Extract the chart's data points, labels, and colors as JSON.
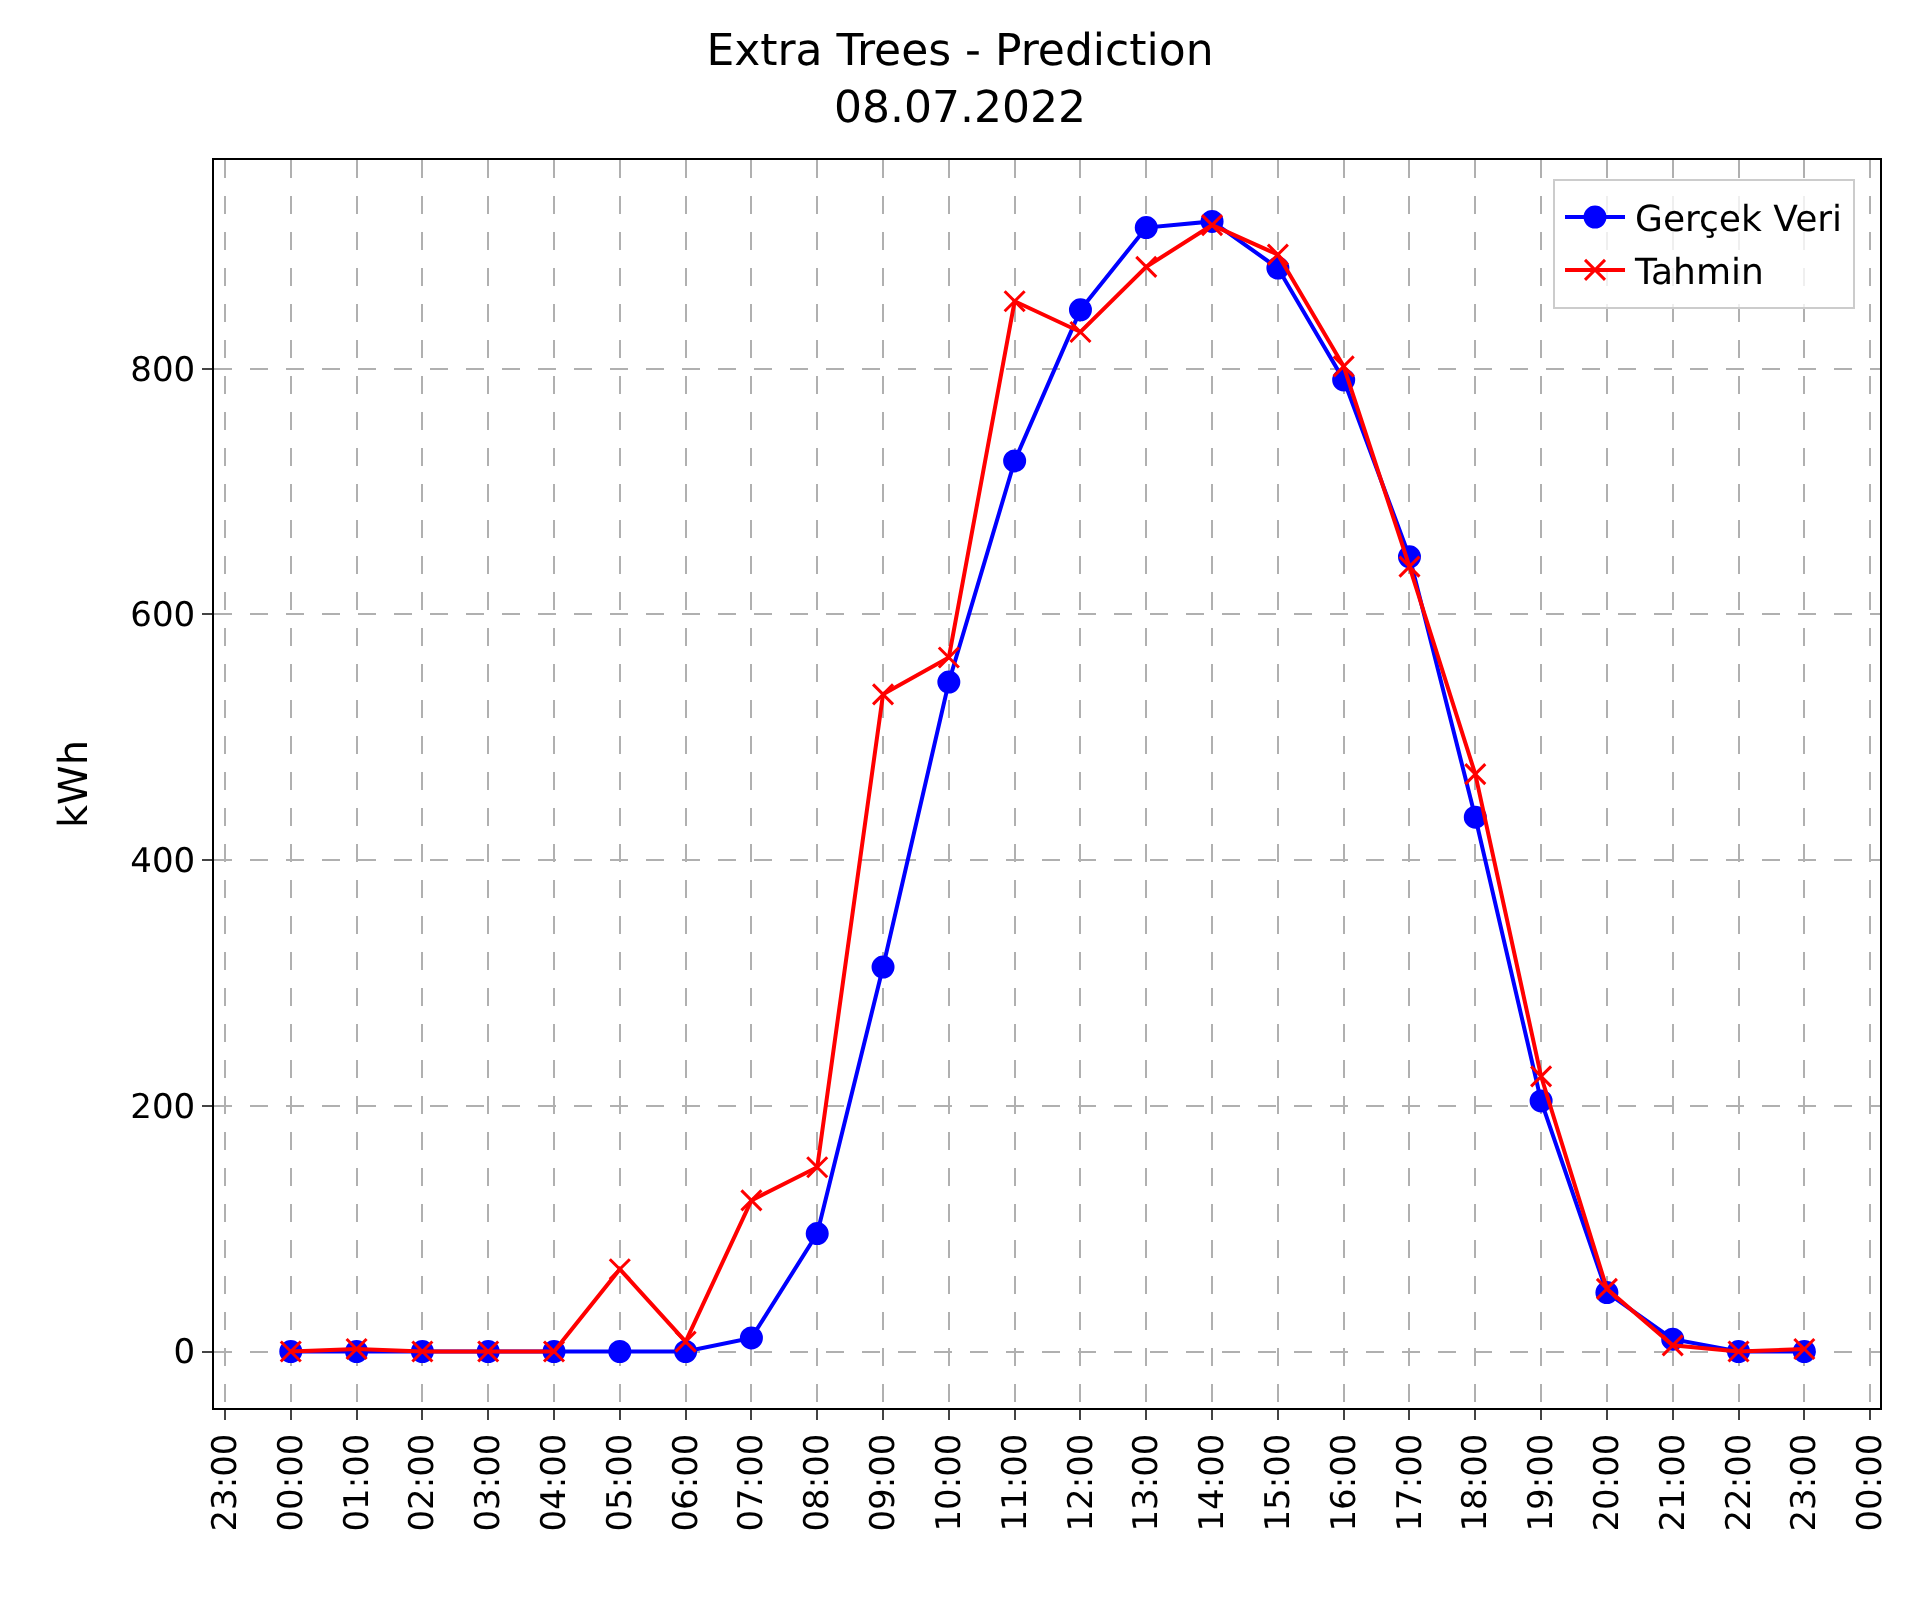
{
  "chart_data": {
    "type": "line",
    "title": "Extra Trees - Prediction",
    "subtitle": "08.07.2022",
    "ylabel": "kWh",
    "x": [
      "2022-07-08T00:00",
      "2022-07-08T01:00",
      "2022-07-08T02:00",
      "2022-07-08T03:00",
      "2022-07-08T04:00",
      "2022-07-08T05:00",
      "2022-07-08T06:00",
      "2022-07-08T07:00",
      "2022-07-08T08:00",
      "2022-07-08T09:00",
      "2022-07-08T10:00",
      "2022-07-08T11:00",
      "2022-07-08T12:00",
      "2022-07-08T13:00",
      "2022-07-08T14:00",
      "2022-07-08T15:00",
      "2022-07-08T16:00",
      "2022-07-08T17:00",
      "2022-07-08T18:00",
      "2022-07-08T19:00",
      "2022-07-08T20:00",
      "2022-07-08T21:00",
      "2022-07-08T22:00",
      "2022-07-08T23:00"
    ],
    "series": [
      {
        "name": "Gerçek Veri",
        "color": "#0000ff",
        "marker": "circle",
        "values": [
          0,
          0,
          0,
          0,
          0,
          0,
          0,
          11,
          96,
          313,
          545,
          725,
          848,
          915,
          920,
          882,
          791,
          647,
          435,
          204,
          48,
          10,
          0,
          0
        ]
      },
      {
        "name": "Tahmin",
        "color": "#ff0000",
        "marker": "cross",
        "values": [
          0,
          2,
          0,
          0,
          0,
          67,
          8,
          123,
          150,
          535,
          565,
          855,
          830,
          883,
          917,
          893,
          802,
          639,
          470,
          224,
          51,
          5,
          0,
          2
        ]
      }
    ],
    "xlim": [
      "2022-07-07T22:50",
      "2022-07-09T00:09"
    ],
    "xticks": [
      {
        "value": "2022-07-07T23:00",
        "label": "23:00"
      },
      {
        "value": "2022-07-08T00:00",
        "label": "00:00"
      },
      {
        "value": "2022-07-08T01:00",
        "label": "01:00"
      },
      {
        "value": "2022-07-08T02:00",
        "label": "02:00"
      },
      {
        "value": "2022-07-08T03:00",
        "label": "03:00"
      },
      {
        "value": "2022-07-08T04:00",
        "label": "04:00"
      },
      {
        "value": "2022-07-08T05:00",
        "label": "05:00"
      },
      {
        "value": "2022-07-08T06:00",
        "label": "06:00"
      },
      {
        "value": "2022-07-08T07:00",
        "label": "07:00"
      },
      {
        "value": "2022-07-08T08:00",
        "label": "08:00"
      },
      {
        "value": "2022-07-08T09:00",
        "label": "09:00"
      },
      {
        "value": "2022-07-08T10:00",
        "label": "10:00"
      },
      {
        "value": "2022-07-08T11:00",
        "label": "11:00"
      },
      {
        "value": "2022-07-08T12:00",
        "label": "12:00"
      },
      {
        "value": "2022-07-08T13:00",
        "label": "13:00"
      },
      {
        "value": "2022-07-08T14:00",
        "label": "14:00"
      },
      {
        "value": "2022-07-08T15:00",
        "label": "15:00"
      },
      {
        "value": "2022-07-08T16:00",
        "label": "16:00"
      },
      {
        "value": "2022-07-08T17:00",
        "label": "17:00"
      },
      {
        "value": "2022-07-08T18:00",
        "label": "18:00"
      },
      {
        "value": "2022-07-08T19:00",
        "label": "19:00"
      },
      {
        "value": "2022-07-08T20:00",
        "label": "20:00"
      },
      {
        "value": "2022-07-08T21:00",
        "label": "21:00"
      },
      {
        "value": "2022-07-08T22:00",
        "label": "22:00"
      },
      {
        "value": "2022-07-08T23:00",
        "label": "23:00"
      },
      {
        "value": "2022-07-09T00:00",
        "label": "00:00"
      }
    ],
    "ylim": [
      -46,
      970
    ],
    "yticks": [
      0,
      200,
      400,
      600,
      800
    ],
    "grid": true,
    "legend": "top right",
    "line_style": "solid"
  }
}
